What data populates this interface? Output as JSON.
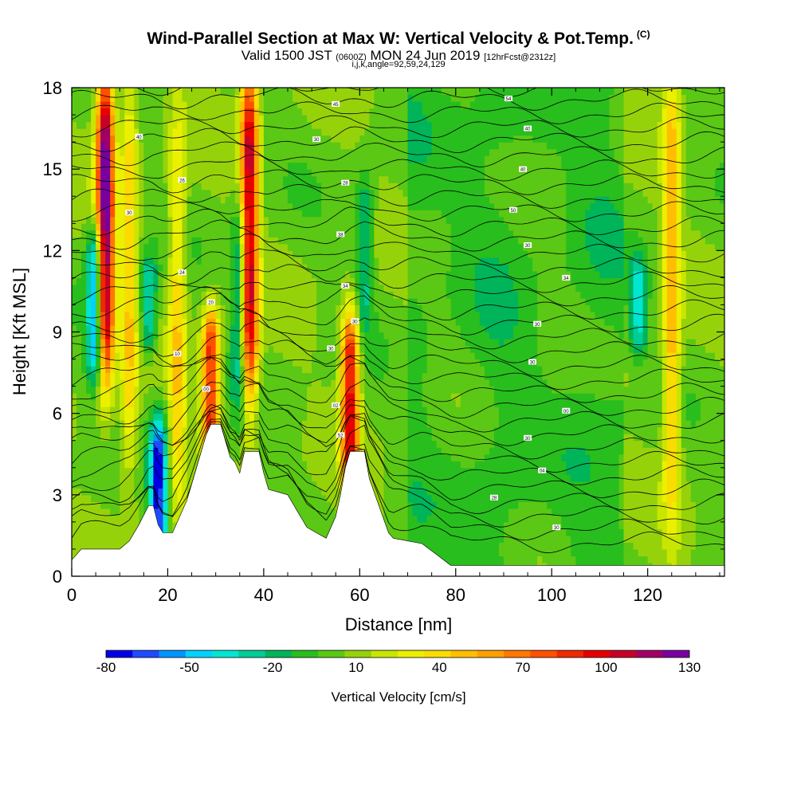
{
  "title": {
    "main": "Wind-Parallel Section at Max W: Vertical Velocity & Pot.Temp.",
    "tag": "(C)",
    "valid_a": "Valid 1500 JST",
    "valid_b": "(0600Z)",
    "valid_c": "MON 24 Jun 2019",
    "valid_d": "[12hrFcst@2312z]",
    "section_indices": "i,j,k,angle=92,59,24,129"
  },
  "chart_data": {
    "type": "heatmap",
    "xlabel": "Distance [nm]",
    "ylabel": "Height [Kft MSL]",
    "xlim": [
      0,
      136
    ],
    "ylim": [
      0,
      18
    ],
    "x_ticks": [
      "0",
      "20",
      "40",
      "60",
      "80",
      "100",
      "120"
    ],
    "y_ticks": [
      "0",
      "3",
      "6",
      "9",
      "12",
      "15",
      "18"
    ],
    "colorbar": {
      "label": "Vertical Velocity [cm/s]",
      "levels": [
        -80,
        -70,
        -60,
        -50,
        -40,
        -30,
        -20,
        -10,
        0,
        10,
        20,
        30,
        40,
        50,
        60,
        70,
        80,
        90,
        100,
        110,
        120,
        130
      ],
      "tick_labels": [
        "-80",
        "-50",
        "-20",
        "10",
        "40",
        "70",
        "100",
        "130"
      ],
      "colors": [
        "#0000e6",
        "#1e4bff",
        "#0096ff",
        "#00d2ff",
        "#00e6d2",
        "#00cc96",
        "#00b45a",
        "#28be1e",
        "#5ac814",
        "#96d20a",
        "#c8e600",
        "#ebf000",
        "#fadc00",
        "#ffbe00",
        "#ffa000",
        "#ff7800",
        "#ff5000",
        "#f02800",
        "#e60000",
        "#c80028",
        "#a00064",
        "#7800a0"
      ]
    },
    "updrafts": [
      {
        "x": 7,
        "zmin": 8,
        "zmax": 18,
        "w": 130
      },
      {
        "x": 12,
        "zmin": 4,
        "zmax": 18,
        "w": 40
      },
      {
        "x": 22,
        "zmin": 3,
        "zmax": 16,
        "w": 40
      },
      {
        "x": 29,
        "zmin": 5,
        "zmax": 9,
        "w": 90
      },
      {
        "x": 37,
        "zmin": 7,
        "zmax": 18,
        "w": 110
      },
      {
        "x": 58,
        "zmin": 4,
        "zmax": 9,
        "w": 100
      },
      {
        "x": 125,
        "zmin": 3,
        "zmax": 18,
        "w": 50
      }
    ],
    "downdrafts": [
      {
        "x": 5,
        "zmin": 8,
        "zmax": 12,
        "w": -70
      },
      {
        "x": 16,
        "zmin": 9,
        "zmax": 11,
        "w": -40
      },
      {
        "x": 18,
        "zmin": 1,
        "zmax": 5,
        "w": -80
      },
      {
        "x": 35,
        "zmin": 7,
        "zmax": 13,
        "w": -40
      },
      {
        "x": 61,
        "zmin": 10,
        "zmax": 14,
        "w": -30
      },
      {
        "x": 118,
        "zmin": 9,
        "zmax": 11,
        "w": -40
      }
    ],
    "terrain": [
      [
        0,
        0.6
      ],
      [
        2,
        1.0
      ],
      [
        10,
        1.0
      ],
      [
        12,
        1.3
      ],
      [
        14,
        1.9
      ],
      [
        16,
        2.6
      ],
      [
        17,
        2.6
      ],
      [
        18,
        1.9
      ],
      [
        19,
        1.6
      ],
      [
        21,
        1.6
      ],
      [
        22,
        2.0
      ],
      [
        23,
        2.4
      ],
      [
        24,
        2.8
      ],
      [
        25,
        3.4
      ],
      [
        26,
        4.0
      ],
      [
        27,
        4.6
      ],
      [
        28,
        5.2
      ],
      [
        29,
        5.6
      ],
      [
        31,
        5.6
      ],
      [
        32,
        5.0
      ],
      [
        33,
        4.4
      ],
      [
        34,
        4.2
      ],
      [
        35,
        3.8
      ],
      [
        36,
        4.6
      ],
      [
        39,
        4.6
      ],
      [
        40,
        3.8
      ],
      [
        41,
        3.2
      ],
      [
        45,
        3.0
      ],
      [
        47,
        2.4
      ],
      [
        49,
        1.8
      ],
      [
        51,
        1.6
      ],
      [
        53,
        1.4
      ],
      [
        55,
        2.2
      ],
      [
        56,
        3.0
      ],
      [
        57,
        4.0
      ],
      [
        58,
        4.6
      ],
      [
        61,
        4.6
      ],
      [
        62,
        3.6
      ],
      [
        64,
        2.6
      ],
      [
        66,
        1.6
      ],
      [
        67,
        1.4
      ],
      [
        73,
        1.2
      ],
      [
        76,
        0.8
      ],
      [
        79,
        0.4
      ],
      [
        81,
        0.4
      ],
      [
        136,
        0.4
      ]
    ],
    "theta_contour_labels": [
      {
        "x": 14,
        "z": 16.2,
        "label": "40"
      },
      {
        "x": 23,
        "z": 14.6,
        "label": "26"
      },
      {
        "x": 12,
        "z": 13.4,
        "label": "30"
      },
      {
        "x": 23,
        "z": 11.2,
        "label": "24"
      },
      {
        "x": 29,
        "z": 10.1,
        "label": "20"
      },
      {
        "x": 22,
        "z": 8.2,
        "label": "10"
      },
      {
        "x": 28,
        "z": 6.9,
        "label": "00"
      },
      {
        "x": 55,
        "z": 17.4,
        "label": "45"
      },
      {
        "x": 51,
        "z": 16.1,
        "label": "30"
      },
      {
        "x": 57,
        "z": 14.5,
        "label": "28"
      },
      {
        "x": 56,
        "z": 12.6,
        "label": "38"
      },
      {
        "x": 57,
        "z": 10.7,
        "label": "34"
      },
      {
        "x": 59,
        "z": 9.4,
        "label": "30"
      },
      {
        "x": 54,
        "z": 8.4,
        "label": "30"
      },
      {
        "x": 55,
        "z": 6.3,
        "label": "02"
      },
      {
        "x": 56,
        "z": 5.2,
        "label": "52"
      },
      {
        "x": 91,
        "z": 17.6,
        "label": "54"
      },
      {
        "x": 95,
        "z": 16.5,
        "label": "40"
      },
      {
        "x": 94,
        "z": 15.0,
        "label": "40"
      },
      {
        "x": 92,
        "z": 13.5,
        "label": "50"
      },
      {
        "x": 95,
        "z": 12.2,
        "label": "30"
      },
      {
        "x": 103,
        "z": 11.0,
        "label": "34"
      },
      {
        "x": 97,
        "z": 9.3,
        "label": "30"
      },
      {
        "x": 96,
        "z": 7.9,
        "label": "30"
      },
      {
        "x": 103,
        "z": 6.1,
        "label": "00"
      },
      {
        "x": 95,
        "z": 5.1,
        "label": "30"
      },
      {
        "x": 98,
        "z": 3.9,
        "label": "04"
      },
      {
        "x": 88,
        "z": 2.9,
        "label": "28"
      },
      {
        "x": 101,
        "z": 1.8,
        "label": "30"
      }
    ]
  }
}
